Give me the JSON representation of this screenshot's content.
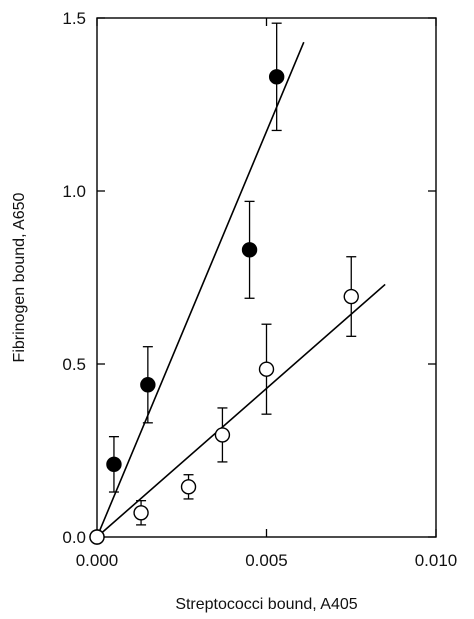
{
  "chart_data": {
    "type": "scatter",
    "title": "",
    "xlabel": "Streptococci bound, A405",
    "ylabel": "Fibrinogen bound, A650",
    "xlim": [
      0.0,
      0.01
    ],
    "ylim": [
      0.0,
      1.5
    ],
    "x_ticks": [
      0.0,
      0.005,
      0.01
    ],
    "x_tick_labels": [
      "0.000",
      "0.005",
      "0.010"
    ],
    "y_ticks": [
      0.0,
      0.5,
      1.0,
      1.5
    ],
    "y_tick_labels": [
      "0.0",
      "0.5",
      "1.0",
      "1.5"
    ],
    "grid": false,
    "legend": "none",
    "series": [
      {
        "marker": "filled-circle",
        "color": "#000000",
        "points": [
          {
            "x": 0.0,
            "y": 0.0,
            "err": 0.0
          },
          {
            "x": 0.0005,
            "y": 0.21,
            "err": 0.08
          },
          {
            "x": 0.0015,
            "y": 0.44,
            "err": 0.11
          },
          {
            "x": 0.0045,
            "y": 0.83,
            "err": 0.14
          },
          {
            "x": 0.0053,
            "y": 1.33,
            "err": 0.155
          }
        ],
        "fit_line": {
          "x": [
            0.0,
            0.0061
          ],
          "y": [
            0.0,
            1.43
          ]
        }
      },
      {
        "marker": "open-circle",
        "color": "#000000",
        "points": [
          {
            "x": 0.0,
            "y": 0.0,
            "err": 0.0
          },
          {
            "x": 0.0013,
            "y": 0.07,
            "err": 0.035
          },
          {
            "x": 0.0027,
            "y": 0.145,
            "err": 0.035
          },
          {
            "x": 0.0037,
            "y": 0.295,
            "err": 0.078
          },
          {
            "x": 0.005,
            "y": 0.485,
            "err": 0.13
          },
          {
            "x": 0.0075,
            "y": 0.695,
            "err": 0.115
          }
        ],
        "fit_line": {
          "x": [
            0.0,
            0.0085
          ],
          "y": [
            0.0,
            0.73
          ]
        }
      }
    ]
  }
}
